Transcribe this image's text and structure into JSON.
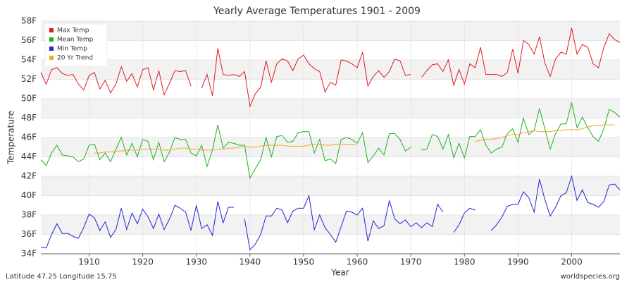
{
  "chart_data": {
    "type": "line",
    "title": "Yearly Average Temperatures 1901 - 2009",
    "xlabel": "Year",
    "ylabel": "Temperature",
    "footer_left": "Latitude 47.25 Longitude 15.75",
    "footer_right": "worldspecies.org",
    "xlim": [
      1901,
      2009
    ],
    "xticks": [
      1910,
      1920,
      1930,
      1940,
      1950,
      1960,
      1970,
      1980,
      1990,
      2000
    ],
    "ylim": [
      34,
      58
    ],
    "yticks": [
      {
        "value": 34,
        "label": "34F"
      },
      {
        "value": 36,
        "label": "36F"
      },
      {
        "value": 38,
        "label": "38F"
      },
      {
        "value": 40,
        "label": "40F"
      },
      {
        "value": 42,
        "label": "42F"
      },
      {
        "value": 44,
        "label": "44F"
      },
      {
        "value": 46,
        "label": "46F"
      },
      {
        "value": 48,
        "label": "48F"
      },
      {
        "value": 50,
        "label": "50F"
      },
      {
        "value": 52,
        "label": "52F"
      },
      {
        "value": 54,
        "label": "54F"
      },
      {
        "value": 56,
        "label": "56F"
      },
      {
        "value": 58,
        "label": "58F"
      }
    ],
    "grid": true,
    "legend": "top-left",
    "x": [
      1901,
      1902,
      1903,
      1904,
      1905,
      1906,
      1907,
      1908,
      1909,
      1910,
      1911,
      1912,
      1913,
      1914,
      1915,
      1916,
      1917,
      1918,
      1919,
      1920,
      1921,
      1922,
      1923,
      1924,
      1925,
      1926,
      1927,
      1928,
      1929,
      1930,
      1931,
      1932,
      1933,
      1934,
      1935,
      1936,
      1937,
      1938,
      1939,
      1940,
      1941,
      1942,
      1943,
      1944,
      1945,
      1946,
      1947,
      1948,
      1949,
      1950,
      1951,
      1952,
      1953,
      1954,
      1955,
      1956,
      1957,
      1958,
      1959,
      1960,
      1961,
      1962,
      1963,
      1964,
      1965,
      1966,
      1967,
      1968,
      1969,
      1970,
      1971,
      1972,
      1973,
      1974,
      1975,
      1976,
      1977,
      1978,
      1979,
      1980,
      1981,
      1982,
      1983,
      1984,
      1985,
      1986,
      1987,
      1988,
      1989,
      1990,
      1991,
      1992,
      1993,
      1994,
      1995,
      1996,
      1997,
      1998,
      1999,
      2000,
      2001,
      2002,
      2003,
      2004,
      2005,
      2006,
      2007,
      2008,
      2009
    ],
    "series": [
      {
        "name": "Max Temp",
        "color": "#e31a1c",
        "values": [
          52.7,
          51.5,
          53.0,
          53.2,
          52.6,
          52.4,
          52.5,
          51.5,
          50.9,
          52.4,
          52.7,
          51.0,
          51.9,
          50.6,
          51.5,
          53.3,
          51.8,
          52.6,
          51.2,
          53.0,
          53.2,
          50.9,
          52.9,
          50.4,
          51.6,
          52.9,
          52.8,
          52.9,
          51.3,
          null,
          51.1,
          52.5,
          50.3,
          55.2,
          52.5,
          52.4,
          52.5,
          52.3,
          52.8,
          49.2,
          50.5,
          51.2,
          53.9,
          51.7,
          53.6,
          54.1,
          53.9,
          52.9,
          54.1,
          54.5,
          53.6,
          53.1,
          52.8,
          50.7,
          51.7,
          51.4,
          54.0,
          53.9,
          53.6,
          53.2,
          54.8,
          51.3,
          52.3,
          52.9,
          52.2,
          52.8,
          54.1,
          53.9,
          52.4,
          52.5,
          null,
          52.2,
          52.9,
          53.5,
          53.6,
          52.8,
          54.0,
          51.4,
          53.0,
          51.5,
          53.6,
          53.2,
          55.3,
          52.5,
          52.5,
          52.5,
          52.3,
          52.7,
          55.1,
          52.6,
          56.0,
          55.6,
          54.6,
          56.4,
          53.7,
          52.3,
          54.1,
          54.8,
          54.6,
          57.3,
          54.6,
          55.6,
          55.3,
          53.6,
          53.2,
          55.3,
          56.7,
          56.1,
          55.8
        ]
      },
      {
        "name": "Mean Temp",
        "color": "#1db31d",
        "values": [
          43.7,
          43.1,
          44.4,
          45.2,
          44.2,
          44.1,
          44.0,
          43.5,
          43.8,
          45.2,
          45.3,
          43.7,
          44.4,
          43.5,
          44.8,
          46.0,
          44.2,
          45.4,
          44.0,
          45.8,
          45.6,
          43.7,
          45.5,
          43.5,
          44.5,
          46.0,
          45.8,
          45.8,
          44.4,
          44.1,
          45.2,
          43.0,
          44.7,
          47.3,
          44.9,
          45.5,
          45.4,
          45.2,
          45.2,
          41.8,
          42.8,
          43.7,
          46.0,
          44.0,
          46.1,
          46.2,
          45.5,
          45.6,
          46.5,
          46.6,
          46.6,
          44.4,
          45.8,
          43.6,
          43.8,
          43.3,
          45.8,
          46.0,
          45.8,
          45.4,
          46.5,
          43.4,
          44.1,
          44.9,
          44.2,
          46.4,
          46.4,
          45.8,
          44.6,
          45.0,
          null,
          44.7,
          44.8,
          46.3,
          46.1,
          44.8,
          46.3,
          43.9,
          45.4,
          43.9,
          46.1,
          46.1,
          46.8,
          45.2,
          44.4,
          44.8,
          45.0,
          46.4,
          46.9,
          45.5,
          48.0,
          46.3,
          46.7,
          49.0,
          46.9,
          44.8,
          46.4,
          47.4,
          47.4,
          49.6,
          47.0,
          48.1,
          47.0,
          46.1,
          45.6,
          46.9,
          48.9,
          48.6,
          48.1
        ]
      },
      {
        "name": "Min Temp",
        "color": "#2424d6",
        "values": [
          34.7,
          34.6,
          36.0,
          37.1,
          36.1,
          36.1,
          35.8,
          35.6,
          36.7,
          38.1,
          37.7,
          36.4,
          37.3,
          35.7,
          36.5,
          38.7,
          36.5,
          38.2,
          37.1,
          38.6,
          37.8,
          36.6,
          38.1,
          36.5,
          37.6,
          39.0,
          38.7,
          38.3,
          36.4,
          39.0,
          36.6,
          37.0,
          35.9,
          39.4,
          37.2,
          38.8,
          38.8,
          null,
          37.6,
          34.4,
          35.0,
          36.0,
          37.9,
          37.9,
          38.7,
          38.5,
          37.2,
          38.4,
          38.7,
          38.7,
          40.0,
          36.5,
          38.0,
          36.7,
          36.0,
          35.2,
          36.8,
          38.4,
          38.3,
          38.0,
          38.7,
          35.3,
          37.4,
          36.6,
          36.9,
          39.5,
          37.6,
          37.1,
          37.5,
          36.8,
          37.2,
          36.7,
          37.2,
          36.8,
          39.1,
          38.3,
          null,
          36.2,
          37.0,
          38.2,
          38.7,
          38.5,
          null,
          null,
          36.4,
          37.0,
          37.8,
          38.9,
          39.1,
          39.1,
          40.4,
          39.8,
          38.3,
          41.7,
          39.6,
          37.9,
          38.8,
          40.0,
          40.3,
          42.0,
          39.5,
          40.6,
          39.3,
          39.1,
          38.8,
          39.4,
          41.1,
          41.2,
          40.6
        ]
      },
      {
        "name": "20 Yr Trend",
        "color": "#f5a623",
        "values": [
          null,
          null,
          null,
          null,
          null,
          null,
          null,
          null,
          null,
          null,
          44.4,
          44.4,
          44.5,
          44.5,
          44.6,
          44.6,
          44.7,
          44.7,
          44.7,
          44.8,
          44.8,
          44.8,
          44.8,
          44.7,
          44.7,
          44.8,
          44.9,
          44.9,
          44.8,
          44.8,
          44.7,
          44.7,
          44.7,
          44.8,
          44.8,
          44.9,
          44.9,
          45.0,
          45.1,
          45.0,
          45.0,
          45.1,
          45.2,
          45.2,
          45.2,
          45.2,
          45.1,
          45.1,
          45.1,
          45.1,
          45.2,
          45.3,
          45.3,
          45.2,
          45.2,
          45.3,
          45.3,
          45.3,
          45.3,
          45.3,
          null,
          null,
          null,
          null,
          null,
          null,
          null,
          null,
          null,
          null,
          null,
          null,
          null,
          null,
          null,
          null,
          null,
          null,
          null,
          null,
          null,
          45.6,
          45.7,
          45.8,
          45.8,
          45.9,
          46.0,
          46.2,
          46.3,
          46.3,
          46.5,
          46.6,
          46.7,
          46.6,
          46.6,
          46.6,
          46.7,
          46.7,
          46.8,
          46.8,
          46.8,
          46.9,
          47.1,
          47.2,
          47.2,
          47.3,
          47.3,
          47.3,
          null
        ]
      }
    ]
  }
}
